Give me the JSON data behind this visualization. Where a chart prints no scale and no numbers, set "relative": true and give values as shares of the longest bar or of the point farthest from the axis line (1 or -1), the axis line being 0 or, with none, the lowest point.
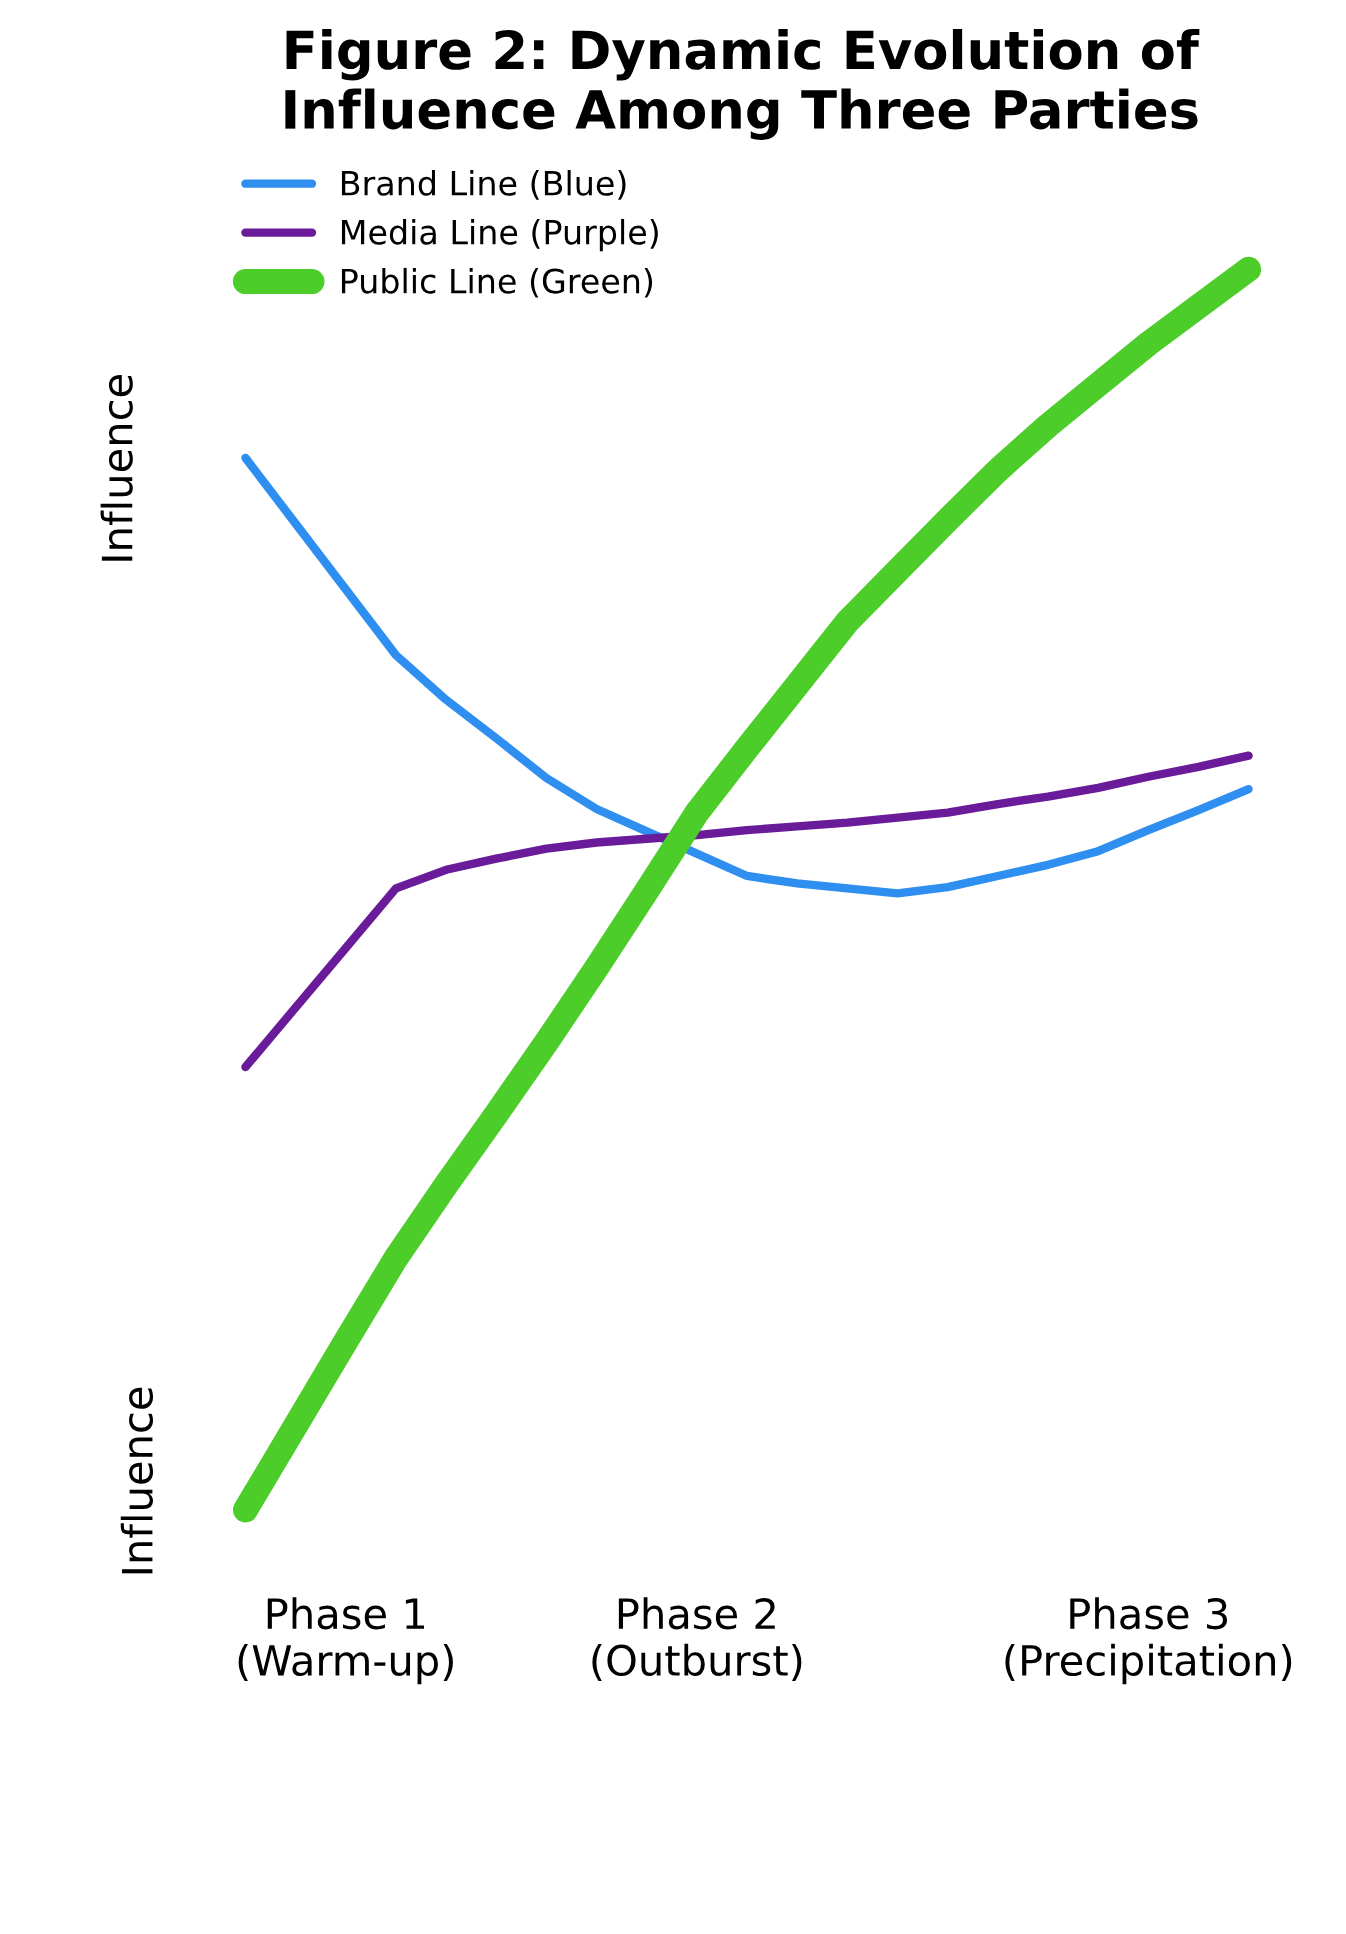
{
  "chart_data": {
    "type": "line",
    "title": "Figure 2: Dynamic Evolution of\nInfluence Among Three Parties",
    "ylabel": "Influence",
    "annotations": [
      "Influence"
    ],
    "relative": true,
    "legend": "top left",
    "grid": false,
    "marker": "none",
    "line_style": "solid",
    "categories": [
      null,
      null,
      "Phase 1\n(Warm-up)",
      null,
      null,
      null,
      null,
      null,
      null,
      "Phase 2\n(Outburst)",
      null,
      null,
      null,
      null,
      null,
      null,
      null,
      null,
      "Phase 3\n(Precipitation)",
      null,
      null
    ],
    "series": [
      {
        "name": "Brand Line (Blue)",
        "color": "#2f8ff0",
        "values": [
          0.848,
          0.795,
          0.742,
          0.689,
          0.653,
          0.622,
          0.59,
          0.565,
          0.547,
          0.529,
          0.511,
          0.505,
          0.501,
          0.497,
          0.502,
          0.511,
          0.52,
          0.531,
          0.548,
          0.564,
          0.581
        ]
      },
      {
        "name": "Media Line (Purple)",
        "color": "#6a1b9a",
        "values": [
          0.357,
          0.405,
          0.453,
          0.501,
          0.516,
          0.525,
          0.533,
          0.538,
          0.541,
          0.544,
          0.548,
          0.551,
          0.554,
          0.558,
          0.562,
          0.569,
          0.575,
          0.582,
          0.591,
          0.599,
          0.608
        ]
      },
      {
        "name": "Public Line (Green)",
        "color": "#4ccd2a",
        "values": [
          0,
          0.068,
          0.136,
          0.203,
          0.262,
          0.319,
          0.377,
          0.437,
          0.499,
          0.562,
          0.614,
          0.665,
          0.716,
          0.757,
          0.798,
          0.838,
          0.874,
          0.907,
          0.94,
          0.97,
          1.0
        ]
      }
    ]
  }
}
